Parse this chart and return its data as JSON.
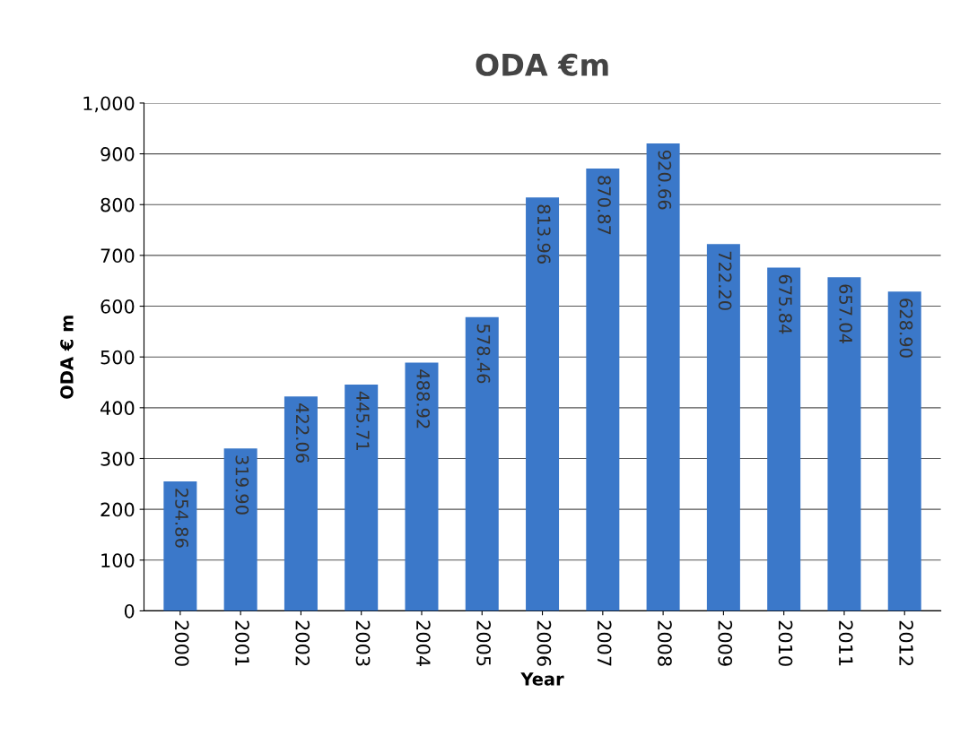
{
  "chart_data": {
    "type": "bar",
    "title": "ODA €m",
    "xlabel": "Year",
    "ylabel": "ODA € m",
    "categories": [
      "2000",
      "2001",
      "2002",
      "2003",
      "2004",
      "2005",
      "2006",
      "2007",
      "2008",
      "2009",
      "2010",
      "2011",
      "2012"
    ],
    "values": [
      254.86,
      319.9,
      422.06,
      445.71,
      488.92,
      578.46,
      813.96,
      870.87,
      920.66,
      722.2,
      675.84,
      657.04,
      628.9
    ],
    "value_labels": [
      "254.86",
      "319.90",
      "422.06",
      "445.71",
      "488.92",
      "578.46",
      "813.96",
      "870.87",
      "920.66",
      "722.20",
      "675.84",
      "657.04",
      "628.90"
    ],
    "color": "#3b78c9",
    "ylim": [
      0,
      1000
    ],
    "yticks": [
      0,
      100,
      200,
      300,
      400,
      500,
      600,
      700,
      800,
      900,
      {
        "value": 1000,
        "label": "1,000"
      }
    ],
    "grid": "y"
  }
}
